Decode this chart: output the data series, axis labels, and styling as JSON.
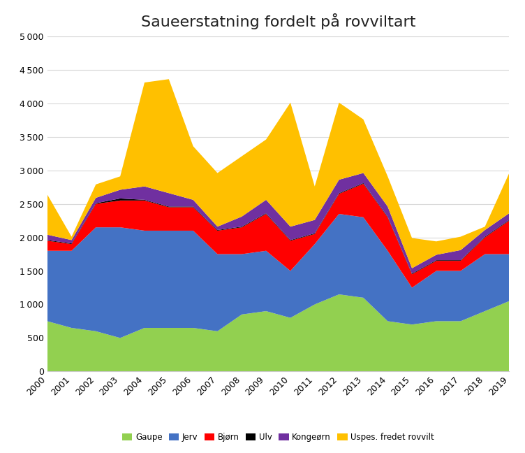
{
  "years": [
    2000,
    2001,
    2002,
    2003,
    2004,
    2005,
    2006,
    2007,
    2008,
    2009,
    2010,
    2011,
    2012,
    2013,
    2014,
    2015,
    2016,
    2017,
    2018,
    2019
  ],
  "gaupe": [
    750,
    650,
    600,
    500,
    650,
    650,
    650,
    600,
    850,
    900,
    800,
    1000,
    1150,
    1100,
    750,
    700,
    750,
    750,
    900,
    1050
  ],
  "jerv": [
    1050,
    1150,
    1550,
    1650,
    1450,
    1450,
    1450,
    1150,
    900,
    900,
    700,
    900,
    1200,
    1200,
    1050,
    550,
    750,
    750,
    850,
    700
  ],
  "bjorn": [
    150,
    100,
    350,
    400,
    450,
    350,
    350,
    350,
    400,
    550,
    450,
    150,
    300,
    500,
    500,
    200,
    150,
    150,
    250,
    500
  ],
  "ulv": [
    10,
    10,
    10,
    30,
    10,
    10,
    10,
    10,
    10,
    10,
    10,
    10,
    10,
    10,
    10,
    10,
    10,
    10,
    10,
    10
  ],
  "kongeorn": [
    80,
    50,
    80,
    130,
    200,
    200,
    100,
    50,
    150,
    200,
    200,
    200,
    200,
    150,
    150,
    80,
    80,
    150,
    100,
    100
  ],
  "uspes": [
    600,
    50,
    200,
    200,
    1550,
    1700,
    800,
    800,
    900,
    900,
    1850,
    500,
    1150,
    800,
    450,
    450,
    200,
    200,
    50,
    600
  ],
  "series_labels": [
    "Gaupe",
    "Jerv",
    "Bjørn",
    "Ulv",
    "Kongeørn",
    "Uspes. fredet rovvilt"
  ],
  "series_colors": [
    "#92d050",
    "#4472c4",
    "#ff0000",
    "#000000",
    "#7030a0",
    "#ffc000"
  ],
  "title": "Saueerstatning fordelt på rovviltart",
  "ylim": [
    0,
    5000
  ],
  "yticks": [
    0,
    500,
    1000,
    1500,
    2000,
    2500,
    3000,
    3500,
    4000,
    4500,
    5000
  ],
  "background_color": "#ffffff",
  "grid_color": "#d9d9d9",
  "title_fontsize": 16
}
